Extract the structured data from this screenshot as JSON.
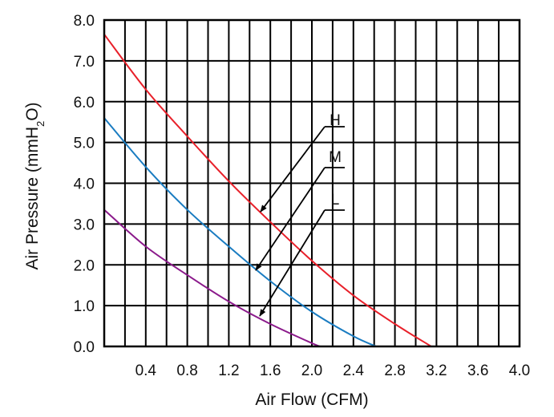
{
  "chart_data": {
    "type": "line",
    "xlabel": "Air Flow (CFM)",
    "ylabel": {
      "prefix": "Air Pressure (mmH",
      "subscript": "2",
      "suffix": "O)"
    },
    "xlim": [
      0,
      4.0
    ],
    "ylim": [
      0,
      8.0
    ],
    "x_ticks": [
      "0.4",
      "0.8",
      "1.2",
      "1.6",
      "2.0",
      "2.4",
      "2.8",
      "3.2",
      "3.6",
      "4.0"
    ],
    "y_ticks": [
      "0.0",
      "1.0",
      "2.0",
      "3.0",
      "4.0",
      "5.0",
      "6.0",
      "7.0",
      "8.0"
    ],
    "grid": true,
    "series": [
      {
        "name": "H",
        "color": "#e8202a",
        "x": [
          0.0,
          0.4,
          0.8,
          1.2,
          1.6,
          2.0,
          2.4,
          2.8,
          3.15
        ],
        "y": [
          7.65,
          6.3,
          5.15,
          4.05,
          3.05,
          2.1,
          1.25,
          0.55,
          0.0
        ]
      },
      {
        "name": "M",
        "color": "#1a7cc1",
        "x": [
          0.0,
          0.4,
          0.8,
          1.2,
          1.6,
          2.0,
          2.4,
          2.62
        ],
        "y": [
          5.6,
          4.4,
          3.35,
          2.45,
          1.6,
          0.85,
          0.25,
          0.0
        ]
      },
      {
        "name": "L",
        "color": "#8b1a8b",
        "x": [
          0.0,
          0.4,
          0.8,
          1.2,
          1.6,
          2.0,
          2.08
        ],
        "y": [
          3.35,
          2.45,
          1.75,
          1.1,
          0.55,
          0.08,
          0.0
        ]
      }
    ]
  }
}
